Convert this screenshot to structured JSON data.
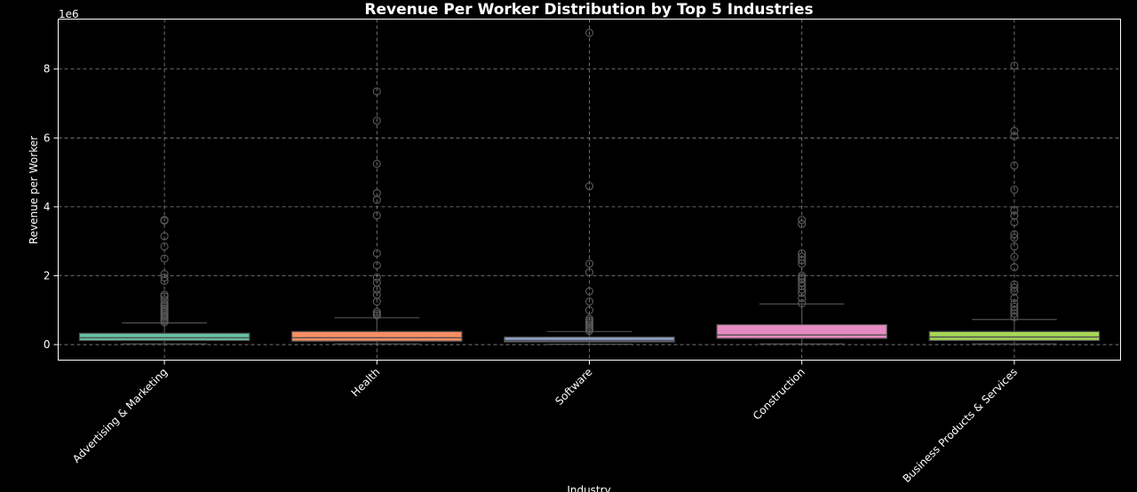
{
  "chart_data": {
    "type": "box",
    "title": "Revenue Per Worker Distribution by Top 5 Industries",
    "xlabel": "Industry",
    "ylabel": "Revenue per Worker",
    "y_offset_label": "1e6",
    "ylim": [
      -0.45,
      9.45
    ],
    "yticks": [
      0,
      2,
      4,
      6,
      8
    ],
    "grid": true,
    "categories": [
      "Advertising & Marketing",
      "Health",
      "Software",
      "Construction",
      "Business Products & Services"
    ],
    "colors": [
      "#66c2a5",
      "#fc8d62",
      "#8da0cb",
      "#e78ac3",
      "#a6d854"
    ],
    "boxes": [
      {
        "category": "Advertising & Marketing",
        "whisker_low": 0.02,
        "q1": 0.12,
        "median": 0.2,
        "q3": 0.33,
        "whisker_high": 0.63,
        "outliers": [
          0.65,
          0.7,
          0.75,
          0.8,
          0.85,
          0.9,
          0.95,
          1.0,
          1.05,
          1.1,
          1.15,
          1.2,
          1.3,
          1.4,
          1.45,
          1.85,
          1.95,
          2.05,
          2.5,
          2.85,
          3.15,
          3.6,
          3.62
        ]
      },
      {
        "category": "Health",
        "whisker_low": 0.02,
        "q1": 0.1,
        "median": 0.2,
        "q3": 0.38,
        "whisker_high": 0.78,
        "outliers": [
          0.85,
          0.9,
          0.95,
          1.25,
          1.45,
          1.6,
          1.8,
          1.95,
          2.3,
          2.65,
          3.75,
          4.2,
          4.4,
          5.25,
          6.5,
          7.35
        ]
      },
      {
        "category": "Software",
        "whisker_low": 0.01,
        "q1": 0.08,
        "median": 0.12,
        "q3": 0.22,
        "whisker_high": 0.38,
        "outliers": [
          0.4,
          0.45,
          0.5,
          0.55,
          0.6,
          0.65,
          0.7,
          0.75,
          1.0,
          1.25,
          1.55,
          2.1,
          2.35,
          4.6,
          9.05
        ]
      },
      {
        "category": "Construction",
        "whisker_low": 0.02,
        "q1": 0.18,
        "median": 0.28,
        "q3": 0.58,
        "whisker_high": 1.18,
        "outliers": [
          1.2,
          1.35,
          1.5,
          1.6,
          1.7,
          1.8,
          1.9,
          1.95,
          2.0,
          2.35,
          2.45,
          2.55,
          2.65,
          3.5,
          3.62
        ]
      },
      {
        "category": "Business Products & Services",
        "whisker_low": 0.02,
        "q1": 0.12,
        "median": 0.22,
        "q3": 0.38,
        "whisker_high": 0.73,
        "outliers": [
          0.8,
          0.9,
          1.0,
          1.1,
          1.2,
          1.35,
          1.55,
          1.65,
          1.75,
          2.25,
          2.55,
          2.85,
          3.1,
          3.2,
          3.55,
          3.75,
          3.9,
          4.5,
          5.2,
          6.05,
          6.2,
          8.1
        ]
      }
    ]
  }
}
